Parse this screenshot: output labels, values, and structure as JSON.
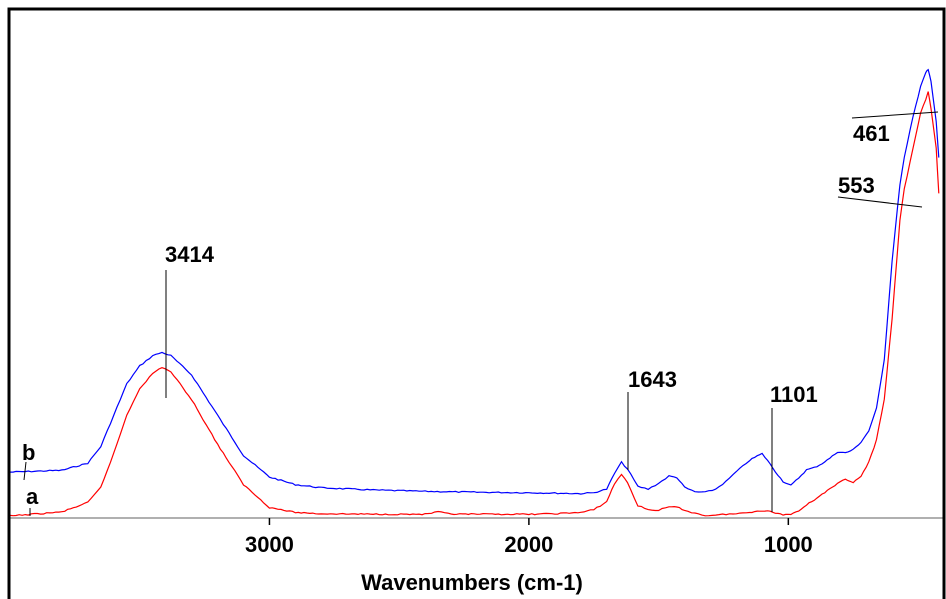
{
  "chart_data": {
    "type": "line",
    "title": "",
    "xlabel": "Wavenumbers (cm-1)",
    "ylabel": "",
    "xlim": [
      4000,
      400
    ],
    "x_reversed": true,
    "ylim": [
      0,
      100
    ],
    "grid": false,
    "legend": "none",
    "x_ticks": [
      3000,
      2000,
      1000
    ],
    "x_tick_labels": [
      "3000",
      "2000",
      "1000"
    ],
    "series": [
      {
        "name": "b",
        "color": "#0000ff",
        "x": [
          4000,
          3800,
          3700,
          3650,
          3600,
          3550,
          3500,
          3450,
          3414,
          3380,
          3300,
          3200,
          3100,
          3000,
          2900,
          2800,
          2600,
          2400,
          2200,
          2000,
          1900,
          1800,
          1750,
          1700,
          1670,
          1643,
          1620,
          1580,
          1540,
          1500,
          1460,
          1430,
          1400,
          1360,
          1320,
          1280,
          1240,
          1200,
          1150,
          1120,
          1101,
          1080,
          1050,
          1020,
          990,
          960,
          930,
          900,
          870,
          840,
          810,
          780,
          750,
          720,
          690,
          660,
          630,
          600,
          570,
          553,
          520,
          490,
          470,
          461,
          450,
          430,
          420
        ],
        "y": [
          9.8,
          10.2,
          11.8,
          15.5,
          22.5,
          29.5,
          33.5,
          35.8,
          36.5,
          35.8,
          31.5,
          22.5,
          13.5,
          8.7,
          7.0,
          6.3,
          5.8,
          5.5,
          5.3,
          5.2,
          5.1,
          5.0,
          5.2,
          6.0,
          9.5,
          12.0,
          10.5,
          6.6,
          6.0,
          7.3,
          8.9,
          8.6,
          6.4,
          5.4,
          5.3,
          6.0,
          7.7,
          9.9,
          12.4,
          13.4,
          13.9,
          12.4,
          9.9,
          7.7,
          6.8,
          8.5,
          10.3,
          10.8,
          11.7,
          12.9,
          14.3,
          14.1,
          14.8,
          16.5,
          19.0,
          24.0,
          35.0,
          57.0,
          74.0,
          80.0,
          89.0,
          96.0,
          99.0,
          99.6,
          97.0,
          88.0,
          80.0
        ]
      },
      {
        "name": "a",
        "color": "#ff0000",
        "x": [
          4000,
          3800,
          3700,
          3650,
          3600,
          3550,
          3500,
          3450,
          3414,
          3380,
          3300,
          3200,
          3100,
          3000,
          2900,
          2800,
          2600,
          2400,
          2350,
          2300,
          2200,
          2000,
          1900,
          1800,
          1750,
          1700,
          1670,
          1643,
          1620,
          1580,
          1540,
          1500,
          1460,
          1430,
          1400,
          1360,
          1320,
          1280,
          1240,
          1200,
          1150,
          1120,
          1101,
          1080,
          1050,
          1020,
          990,
          960,
          930,
          900,
          870,
          840,
          810,
          780,
          750,
          720,
          690,
          660,
          630,
          600,
          570,
          553,
          520,
          490,
          470,
          461,
          450,
          430,
          420
        ],
        "y": [
          0.0,
          0.9,
          3.0,
          6.4,
          14.0,
          22.5,
          28.5,
          31.8,
          33.2,
          32.2,
          26.0,
          16.0,
          7.0,
          1.9,
          0.8,
          0.5,
          0.4,
          0.4,
          0.9,
          0.4,
          0.4,
          0.4,
          0.5,
          0.8,
          1.4,
          3.2,
          7.2,
          9.3,
          7.5,
          2.3,
          1.4,
          1.3,
          2.0,
          2.0,
          1.3,
          0.6,
          0.1,
          0.2,
          0.4,
          0.5,
          0.8,
          1.1,
          1.2,
          1.1,
          0.7,
          0.3,
          0.4,
          1.2,
          2.5,
          3.6,
          4.9,
          6.0,
          7.2,
          8.3,
          7.5,
          8.8,
          12.0,
          17.0,
          26.0,
          44.0,
          66.0,
          73.0,
          82.0,
          90.0,
          93.0,
          94.7,
          91.0,
          82.0,
          72.0
        ]
      }
    ],
    "annotations": [
      {
        "text": "3414",
        "x": 3414
      },
      {
        "text": "1643",
        "x": 1643
      },
      {
        "text": "1101",
        "x": 1101
      },
      {
        "text": "461",
        "x": 461
      },
      {
        "text": "553",
        "x": 553
      }
    ],
    "series_labels": [
      "b",
      "a"
    ]
  }
}
